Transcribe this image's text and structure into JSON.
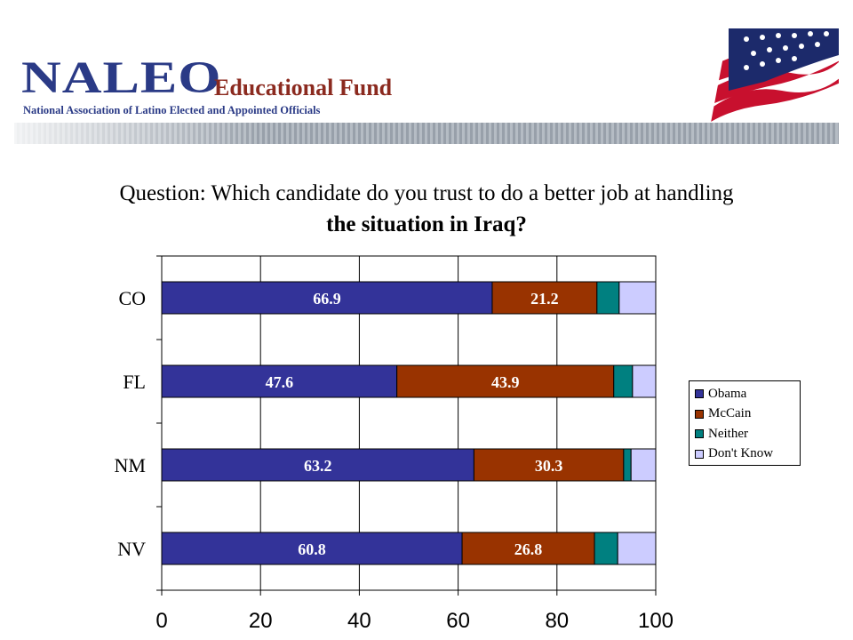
{
  "header": {
    "logo_main": "NALEO",
    "logo_edu": "Educational Fund",
    "logo_sub": "National Association of Latino Elected and Appointed Officials"
  },
  "question": {
    "line1": "Question: Which candidate do you trust to do a better job at handling",
    "line2": "the situation in Iraq?"
  },
  "chart_data": {
    "type": "bar",
    "orientation": "horizontal",
    "stacked": true,
    "categories": [
      "CO",
      "FL",
      "NM",
      "NV"
    ],
    "series": [
      {
        "name": "Obama",
        "values": [
          66.9,
          47.6,
          63.2,
          60.8
        ],
        "color": "#333399",
        "labels": [
          "66.9",
          "47.6",
          "63.2",
          "60.8"
        ]
      },
      {
        "name": "McCain",
        "values": [
          21.2,
          43.9,
          30.3,
          26.8
        ],
        "color": "#993300",
        "labels": [
          "21.2",
          "43.9",
          "30.3",
          "26.8"
        ]
      },
      {
        "name": "Neither",
        "values": [
          4.5,
          3.8,
          1.5,
          4.7
        ],
        "color": "#008080"
      },
      {
        "name": "Don't Know",
        "values": [
          7.4,
          4.7,
          5.0,
          7.7
        ],
        "color": "#ccccff"
      }
    ],
    "xlim": [
      0,
      100
    ],
    "xticks": [
      "0",
      "20",
      "40",
      "60",
      "80",
      "100"
    ],
    "grid": true,
    "legend_position": "right"
  }
}
